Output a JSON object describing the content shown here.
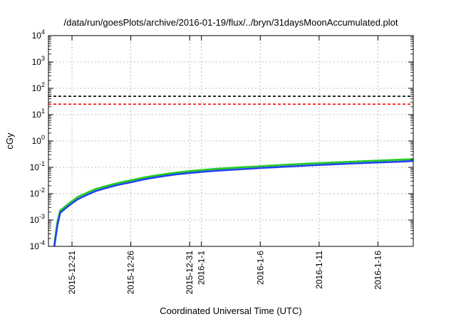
{
  "chart_data": {
    "type": "line",
    "title": "/data/run/goesPlots/archive/2016-01-19/flux/../bryn/31daysMoonAccumulated.plot",
    "xlabel": "Coordinated Universal Time (UTC)",
    "ylabel": "cGy",
    "yscale": "log",
    "ylim": [
      0.0001,
      10000
    ],
    "y_ticks": [
      {
        "value": 0.0001,
        "base": "10",
        "exp": "-4"
      },
      {
        "value": 0.001,
        "base": "10",
        "exp": "-3"
      },
      {
        "value": 0.01,
        "base": "10",
        "exp": "-2"
      },
      {
        "value": 0.1,
        "base": "10",
        "exp": "-1"
      },
      {
        "value": 1,
        "base": "10",
        "exp": "0"
      },
      {
        "value": 10,
        "base": "10",
        "exp": "1"
      },
      {
        "value": 100,
        "base": "10",
        "exp": "2"
      },
      {
        "value": 1000,
        "base": "10",
        "exp": "3"
      },
      {
        "value": 10000,
        "base": "10",
        "exp": "4"
      }
    ],
    "xlim": [
      "2015-12-19",
      "2016-01-19"
    ],
    "x_ticks": [
      {
        "date": "2015-12-21",
        "label": "2015-12-21"
      },
      {
        "date": "2015-12-26",
        "label": "2015-12-26"
      },
      {
        "date": "2015-12-31",
        "label": "2015-12-31"
      },
      {
        "date": "2016-01-01",
        "label": "2016-1-1"
      },
      {
        "date": "2016-01-06",
        "label": "2016-1-6"
      },
      {
        "date": "2016-01-11",
        "label": "2016-1-11"
      },
      {
        "date": "2016-01-16",
        "label": "2016-1-16"
      }
    ],
    "grid": true,
    "thresholds": [
      {
        "value": 50,
        "color": "#000000",
        "style": "dashed"
      },
      {
        "value": 25,
        "color": "#ff0000",
        "style": "dashed"
      }
    ],
    "x": [
      "2015-12-19T12:00",
      "2015-12-19T18:00",
      "2015-12-20T00:00",
      "2015-12-20T12:00",
      "2015-12-21T00:00",
      "2015-12-21T12:00",
      "2015-12-22T00:00",
      "2015-12-22T12:00",
      "2015-12-23T00:00",
      "2015-12-24T00:00",
      "2015-12-25T00:00",
      "2015-12-26T00:00",
      "2015-12-27T00:00",
      "2015-12-28T00:00",
      "2015-12-29T00:00",
      "2015-12-30T00:00",
      "2015-12-31T00:00",
      "2016-01-01T00:00",
      "2016-01-02T00:00",
      "2016-01-04T00:00",
      "2016-01-06T00:00",
      "2016-01-08T00:00",
      "2016-01-10T00:00",
      "2016-01-12T00:00",
      "2016-01-14T00:00",
      "2016-01-16T00:00",
      "2016-01-18T00:00",
      "2016-01-19T00:00"
    ],
    "series": [
      {
        "color": "#22cc22",
        "values": [
          0.00012,
          0.0008,
          0.0023,
          0.0035,
          0.0052,
          0.0075,
          0.0095,
          0.012,
          0.015,
          0.02,
          0.026,
          0.032,
          0.04,
          0.048,
          0.056,
          0.064,
          0.072,
          0.079,
          0.086,
          0.098,
          0.11,
          0.124,
          0.138,
          0.152,
          0.166,
          0.18,
          0.196,
          0.205
        ]
      },
      {
        "color": "#2244ee",
        "values": [
          0.0001,
          0.0006,
          0.0019,
          0.0029,
          0.0043,
          0.0062,
          0.0079,
          0.01,
          0.0125,
          0.017,
          0.022,
          0.027,
          0.034,
          0.041,
          0.048,
          0.055,
          0.061,
          0.067,
          0.073,
          0.083,
          0.094,
          0.105,
          0.117,
          0.129,
          0.141,
          0.153,
          0.166,
          0.174
        ]
      }
    ]
  }
}
